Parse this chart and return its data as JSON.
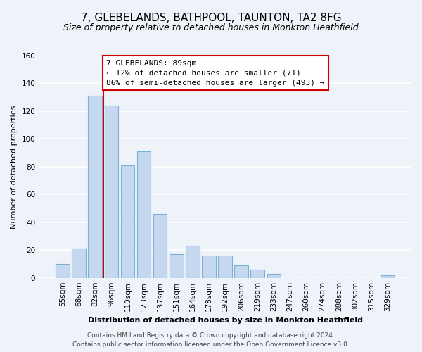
{
  "title": "7, GLEBELANDS, BATHPOOL, TAUNTON, TA2 8FG",
  "subtitle": "Size of property relative to detached houses in Monkton Heathfield",
  "xlabel": "Distribution of detached houses by size in Monkton Heathfield",
  "ylabel": "Number of detached properties",
  "categories": [
    "55sqm",
    "68sqm",
    "82sqm",
    "96sqm",
    "110sqm",
    "123sqm",
    "137sqm",
    "151sqm",
    "164sqm",
    "178sqm",
    "192sqm",
    "206sqm",
    "219sqm",
    "233sqm",
    "247sqm",
    "260sqm",
    "274sqm",
    "288sqm",
    "302sqm",
    "315sqm",
    "329sqm"
  ],
  "values": [
    10,
    21,
    131,
    124,
    81,
    91,
    46,
    17,
    23,
    16,
    16,
    9,
    6,
    3,
    0,
    0,
    0,
    0,
    0,
    0,
    2
  ],
  "bar_color": "#c5d8f0",
  "bar_edge_color": "#7bafd4",
  "vline_x_index": 3,
  "vline_color": "#cc0000",
  "annotation_line1": "7 GLEBELANDS: 89sqm",
  "annotation_line2": "← 12% of detached houses are smaller (71)",
  "annotation_line3": "86% of semi-detached houses are larger (493) →",
  "annotation_box_color": "#ffffff",
  "annotation_box_edge_color": "#cc0000",
  "ylim": [
    0,
    160
  ],
  "yticks": [
    0,
    20,
    40,
    60,
    80,
    100,
    120,
    140,
    160
  ],
  "footer_line1": "Contains HM Land Registry data © Crown copyright and database right 2024.",
  "footer_line2": "Contains public sector information licensed under the Open Government Licence v3.0.",
  "background_color": "#eef2f9",
  "grid_color": "#ffffff",
  "title_fontsize": 11,
  "subtitle_fontsize": 9,
  "annotation_fontsize": 8,
  "footer_fontsize": 6.5
}
